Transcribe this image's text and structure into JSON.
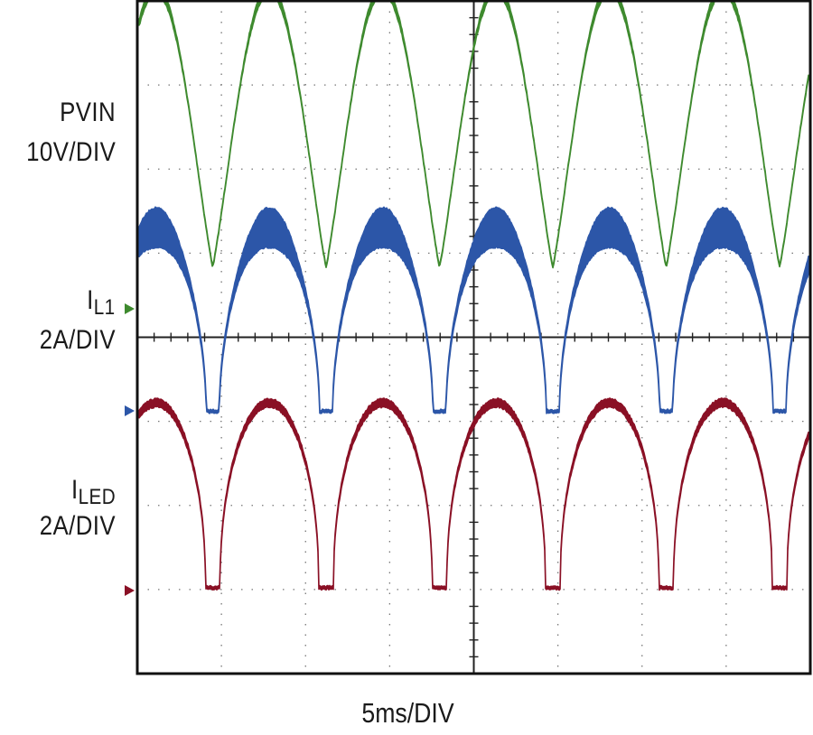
{
  "chart_data": {
    "type": "line",
    "xlabel": "5ms/DIV",
    "grid": true,
    "series": [
      {
        "key": "pvin",
        "label_main": "PVIN",
        "label_sub": "",
        "scale": "10V/DIV",
        "color": "#3e8a2e",
        "marker_color": "#3e8a2e",
        "waveform": "rectified-sine",
        "peak_div": 3.3,
        "trough_div": 0.0
      },
      {
        "key": "il1",
        "label_main": "I",
        "label_sub": "L1",
        "scale": "2A/DIV",
        "color": "#2c56a8",
        "marker_color": "#2c56a8",
        "waveform": "rectified-current",
        "peak_div": 2.8,
        "trough_div": 0.0
      },
      {
        "key": "iled",
        "label_main": "I",
        "label_sub": "LED",
        "scale": "2A/DIV",
        "color": "#8a1025",
        "marker_color": "#8a1025",
        "waveform": "rectified-current",
        "peak_div": 2.2,
        "trough_div": 0.0
      }
    ]
  }
}
